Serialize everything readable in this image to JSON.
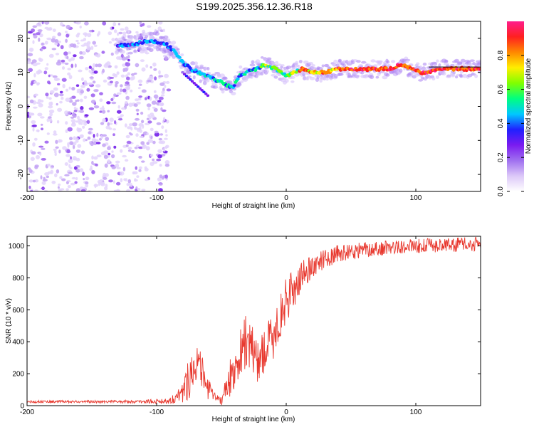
{
  "title": "S199.2025.356.12.36.R18",
  "chart_data": [
    {
      "type": "heatmap",
      "xlabel": "Height of straight line (km)",
      "ylabel": "Frequency (Hz)",
      "xlim": [
        -200,
        150
      ],
      "ylim": [
        -25,
        25
      ],
      "xticks": [
        -200,
        -100,
        0,
        100
      ],
      "yticks": [
        -20,
        -10,
        0,
        10,
        20
      ],
      "colorbar": {
        "label": "Normalized spectral amplitude",
        "ticks": [
          0.0,
          0.2,
          0.4,
          0.6,
          0.8
        ],
        "colors": [
          "#ffffff",
          "#dcc8f8",
          "#a070f0",
          "#7a1bf0",
          "#2020ff",
          "#00c8ff",
          "#00ff80",
          "#80ff00",
          "#ffee00",
          "#ff8800",
          "#ff2020",
          "#ff1e8c"
        ]
      },
      "ridge": {
        "x": [
          -130,
          -120,
          -110,
          -100,
          -92,
          -86,
          -80,
          -74,
          -68,
          -62,
          -56,
          -50,
          -44,
          -40,
          -36,
          -30,
          -24,
          -18,
          -14,
          -8,
          -4,
          0,
          6,
          12,
          20,
          30,
          40,
          50,
          60,
          70,
          80,
          86,
          92,
          98,
          104,
          110,
          116,
          130,
          150
        ],
        "y": [
          18,
          18,
          19,
          19,
          18,
          16,
          13,
          11,
          10,
          9,
          8,
          7,
          6,
          6,
          9,
          10,
          11,
          12,
          12,
          11,
          10,
          9,
          10,
          11,
          10,
          10,
          11,
          11,
          11,
          11,
          11,
          12,
          12,
          11,
          10,
          10,
          11,
          11,
          11
        ]
      }
    },
    {
      "type": "line",
      "xlabel": "Height of straight line (km)",
      "ylabel": "SNR (10 * v/v)",
      "xlim": [
        -200,
        150
      ],
      "ylim": [
        0,
        1060
      ],
      "xticks": [
        -200,
        -100,
        0,
        100
      ],
      "yticks": [
        0,
        200,
        400,
        600,
        800,
        1000
      ],
      "color": "#e8392f",
      "envelope": {
        "x": [
          -200,
          -150,
          -110,
          -90,
          -80,
          -75,
          -70,
          -66,
          -60,
          -55,
          -50,
          -45,
          -40,
          -35,
          -30,
          -25,
          -20,
          -15,
          -10,
          -5,
          0,
          5,
          10,
          15,
          20,
          30,
          40,
          60,
          80,
          100,
          120,
          150
        ],
        "mean": [
          25,
          25,
          25,
          30,
          80,
          180,
          280,
          220,
          100,
          50,
          40,
          130,
          240,
          330,
          430,
          300,
          300,
          360,
          440,
          540,
          660,
          720,
          780,
          840,
          870,
          920,
          950,
          975,
          990,
          1000,
          1005,
          1010
        ],
        "spread": [
          8,
          8,
          10,
          20,
          60,
          140,
          120,
          120,
          70,
          30,
          40,
          110,
          140,
          160,
          190,
          170,
          150,
          150,
          160,
          150,
          140,
          120,
          100,
          90,
          70,
          60,
          55,
          50,
          45,
          45,
          45,
          45
        ]
      }
    }
  ]
}
